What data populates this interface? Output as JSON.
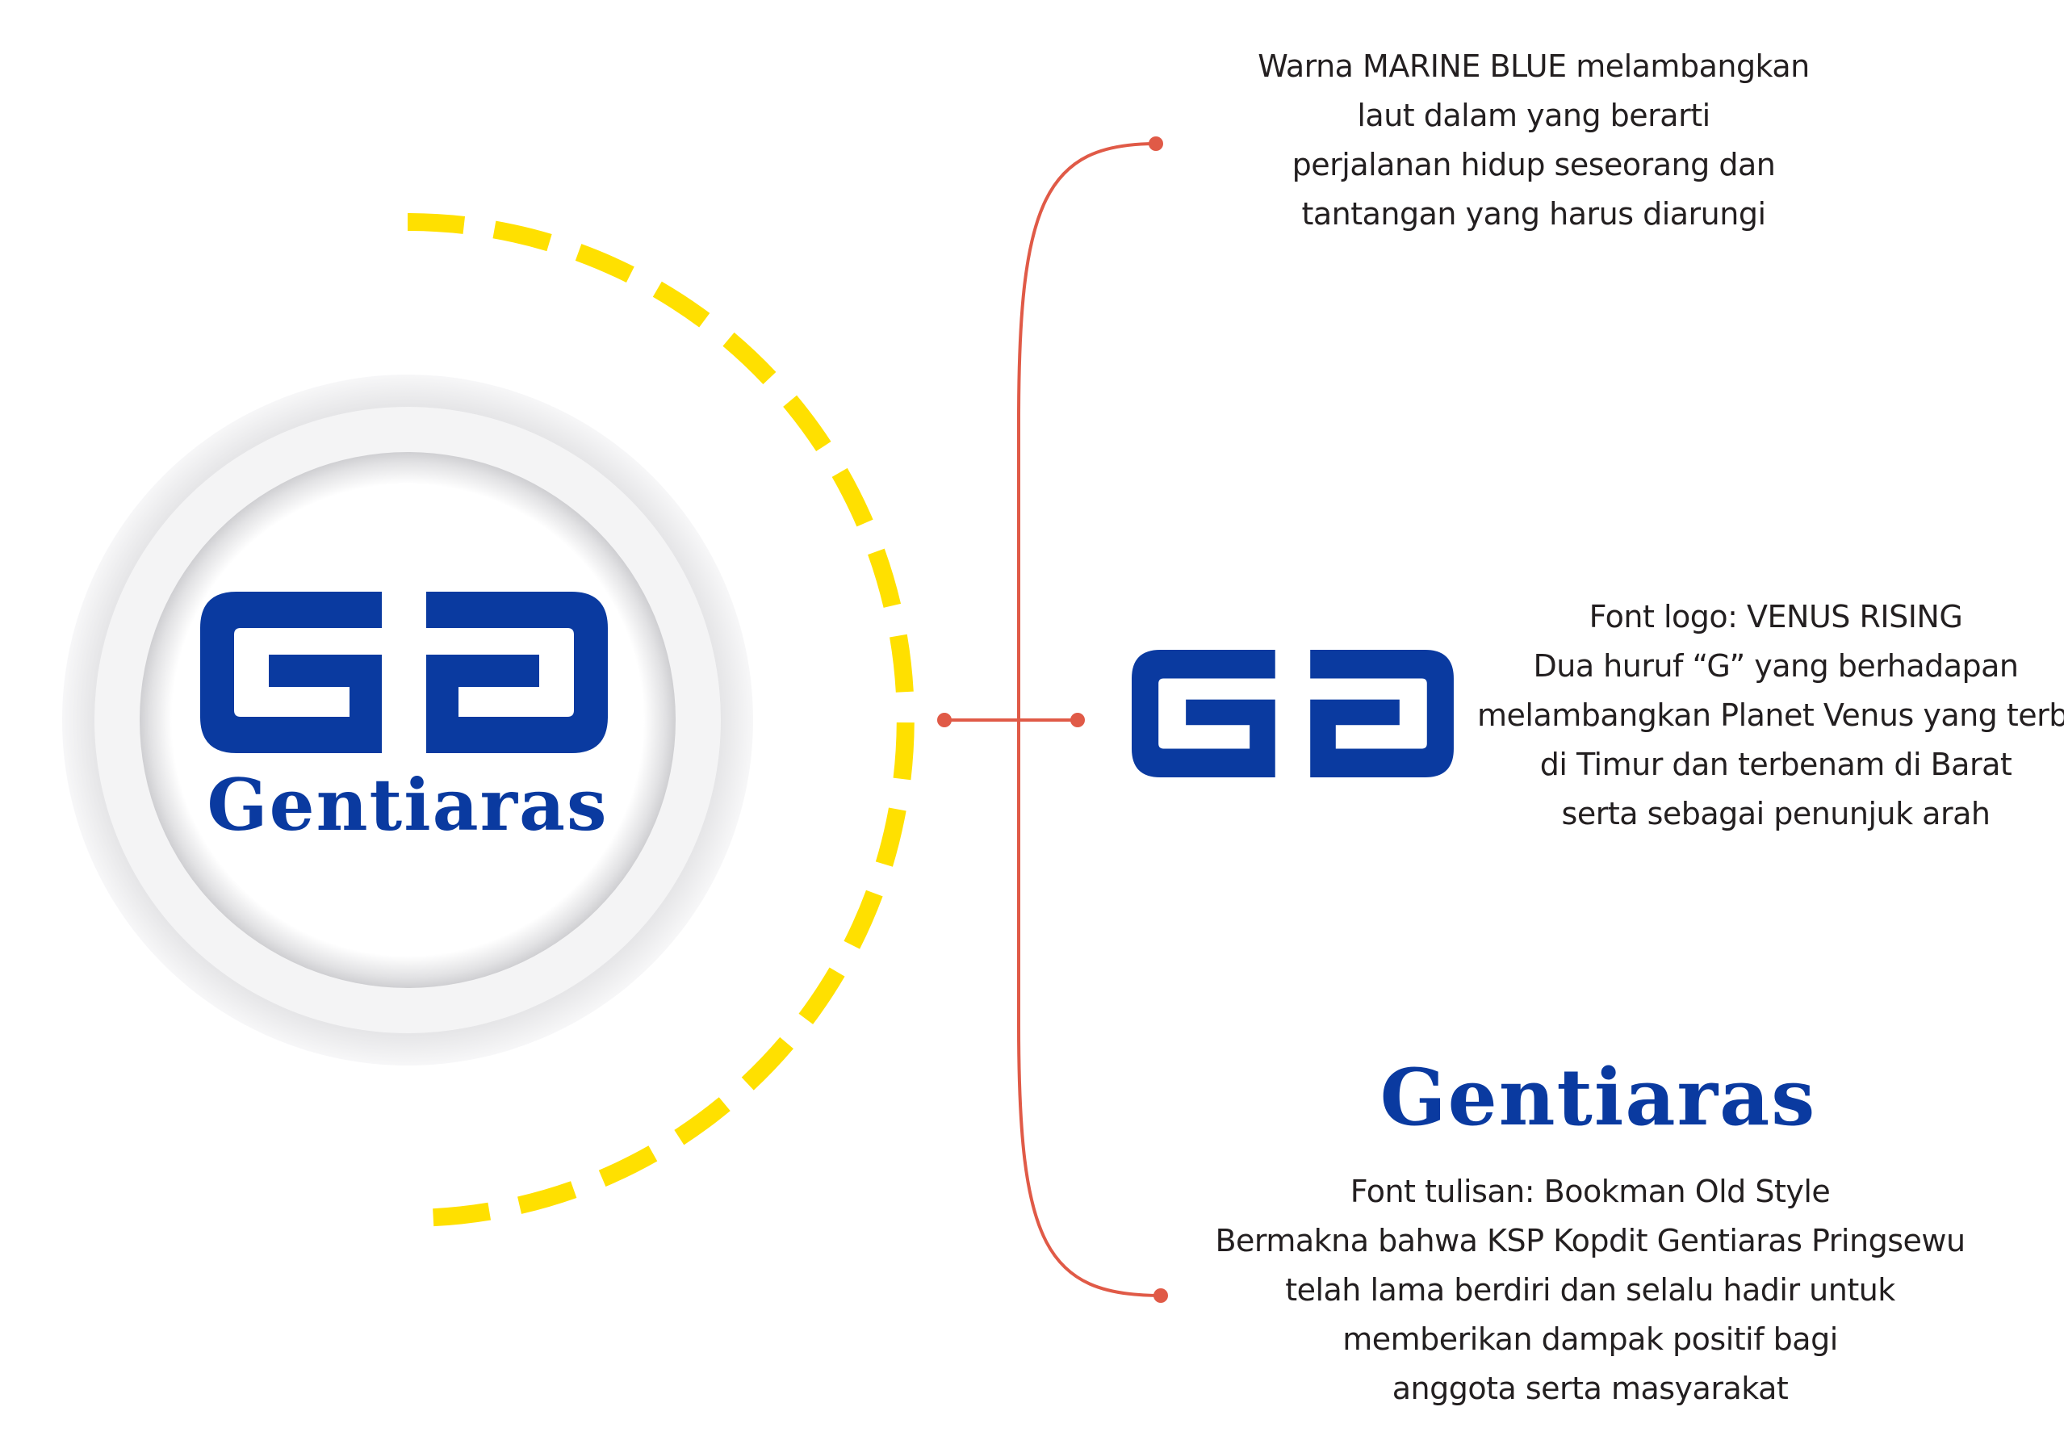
{
  "colors": {
    "brand_blue": "#0a3aa0",
    "arc_yellow": "#ffe000",
    "connector_red": "#e05a47",
    "text_dark": "#231f20"
  },
  "logo": {
    "monogram_icon": "double-g-monogram-icon",
    "wordmark": "Gentiaras"
  },
  "annotations": {
    "color_meaning": {
      "lines": [
        "Warna MARINE BLUE melambangkan",
        "laut dalam yang berarti",
        "perjalanan hidup seseorang dan",
        "tantangan yang harus diarungi"
      ]
    },
    "font_logo": {
      "lines": [
        "Font logo: VENUS RISING",
        "Dua huruf “G” yang berhadapan",
        "melambangkan Planet Venus yang terbit",
        "di Timur  dan terbenam di Barat",
        "serta sebagai penunjuk arah"
      ]
    },
    "font_text": {
      "wordmark": "Gentiaras",
      "lines": [
        "Font tulisan: Bookman Old Style",
        "Bermakna bahwa KSP Kopdit Gentiaras Pringsewu",
        "telah lama berdiri dan selalu hadir untuk",
        "memberikan dampak positif bagi",
        "anggota serta masyarakat"
      ]
    }
  }
}
